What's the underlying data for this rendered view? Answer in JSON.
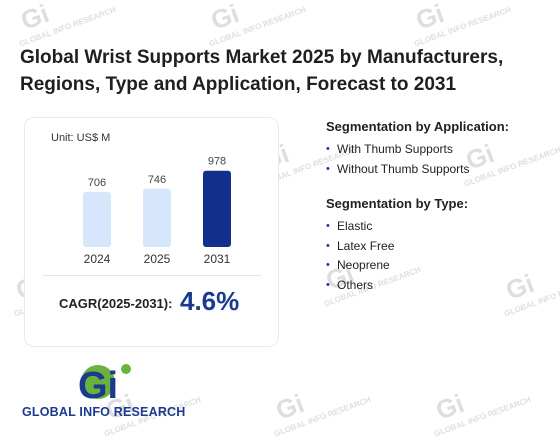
{
  "title": "Global Wrist Supports Market 2025 by Manufacturers, Regions, Type and Application, Forecast to 2031",
  "card": {
    "unit_label": "Unit: US$ M",
    "cagr_label": "CAGR(2025-2031):",
    "cagr_value": "4.6%"
  },
  "chart_data": {
    "type": "bar",
    "categories": [
      "2024",
      "2025",
      "2031"
    ],
    "values": [
      706,
      746,
      978
    ],
    "title": "",
    "xlabel": "",
    "ylabel": "",
    "ylim": [
      0,
      1000
    ],
    "grid": false,
    "colors": [
      "#d6e6fb",
      "#d6e6fb",
      "#132f8c"
    ],
    "label_color": "#444444"
  },
  "segments": {
    "application": {
      "title": "Segmentation by Application:",
      "items": [
        "With Thumb Supports",
        "Without Thumb Supports"
      ]
    },
    "type": {
      "title": "Segmentation by Type:",
      "items": [
        "Elastic",
        "Latex Free",
        "Neoprene",
        "Others"
      ]
    }
  },
  "logo": {
    "text": "GLOBAL INFO RESEARCH",
    "mark_text": "Gi",
    "colors": {
      "blue": "#1a3a8f",
      "green": "#6ab23e"
    }
  },
  "watermark": {
    "text": "GLOBAL INFO RESEARCH",
    "mark_text": "Gi",
    "color": "#dedede"
  },
  "bullet_glyph": "•"
}
